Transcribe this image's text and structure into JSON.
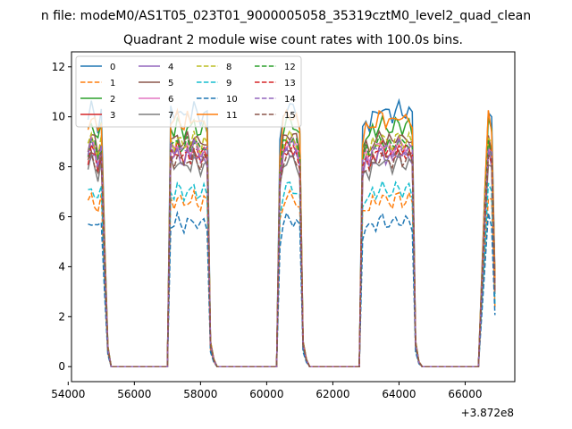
{
  "figure": {
    "suptitle": "n file: modeM0/AS1T05_023T01_9000005058_35319cztM0_level2_quad_clean"
  },
  "chart_data": {
    "type": "line",
    "title": "Quadrant 2 module wise count rates with 100.0s bins.",
    "xlabel": "",
    "ylabel": "",
    "x_offset_label": "+3.872e8",
    "xlim": [
      54100,
      67500
    ],
    "ylim": [
      -0.6,
      12.6
    ],
    "xticks": [
      54000,
      56000,
      58000,
      60000,
      62000,
      64000,
      66000
    ],
    "yticks": [
      0,
      2,
      4,
      6,
      8,
      10,
      12
    ],
    "grid": false,
    "legend": {
      "position": "top-left",
      "columns": 4
    },
    "segments": [
      {
        "x": [
          54600,
          54700,
          54800,
          54900,
          55000,
          55100,
          55200,
          55300
        ],
        "shape": [
          0.95,
          1.0,
          0.97,
          0.92,
          0.98,
          0.5,
          0.08,
          0.0
        ]
      },
      {
        "x": [
          57000,
          57100,
          57200,
          57300,
          57400,
          57500,
          57600,
          57700,
          57800,
          57900,
          58000,
          58100,
          58200,
          58300,
          58400,
          58500
        ],
        "shape": [
          0.0,
          0.98,
          0.96,
          1.0,
          0.97,
          0.95,
          0.99,
          0.96,
          1.0,
          0.97,
          0.95,
          0.98,
          0.96,
          0.1,
          0.03,
          0.0
        ]
      },
      {
        "x": [
          60300,
          60400,
          60500,
          60600,
          60700,
          60800,
          60900,
          61000,
          61100,
          61200,
          61300
        ],
        "shape": [
          0.0,
          0.85,
          0.97,
          1.0,
          1.0,
          0.99,
          0.98,
          0.93,
          0.1,
          0.03,
          0.0
        ]
      },
      {
        "x": [
          62800,
          62900,
          63000,
          63100,
          63200,
          63300,
          63400,
          63500,
          63600,
          63700,
          63800,
          63900,
          64000,
          64100,
          64200,
          64300,
          64400,
          64500,
          64600,
          64700
        ],
        "shape": [
          0.0,
          0.9,
          0.95,
          0.93,
          0.97,
          0.96,
          0.99,
          1.0,
          0.97,
          0.98,
          0.96,
          0.99,
          1.0,
          0.97,
          0.98,
          0.99,
          0.96,
          0.1,
          0.02,
          0.0
        ]
      },
      {
        "x": [
          66400,
          66500,
          66600,
          66700,
          66800,
          66900
        ],
        "shape": [
          0.0,
          0.35,
          0.7,
          1.0,
          0.95,
          0.35
        ]
      }
    ],
    "series": [
      {
        "name": "0",
        "level": 10.4,
        "color": "#1f77b4",
        "dash": "solid"
      },
      {
        "name": "1",
        "level": 6.8,
        "color": "#ff7f0e",
        "dash": "dashed"
      },
      {
        "name": "2",
        "level": 9.8,
        "color": "#2ca02c",
        "dash": "solid"
      },
      {
        "name": "3",
        "level": 8.8,
        "color": "#d62728",
        "dash": "solid"
      },
      {
        "name": "4",
        "level": 8.6,
        "color": "#9467bd",
        "dash": "solid"
      },
      {
        "name": "5",
        "level": 9.3,
        "color": "#8c564b",
        "dash": "solid"
      },
      {
        "name": "6",
        "level": 9.0,
        "color": "#e377c2",
        "dash": "solid"
      },
      {
        "name": "7",
        "level": 8.3,
        "color": "#7f7f7f",
        "dash": "solid"
      },
      {
        "name": "8",
        "level": 9.2,
        "color": "#bcbd22",
        "dash": "dashed"
      },
      {
        "name": "9",
        "level": 7.2,
        "color": "#17becf",
        "dash": "dashed"
      },
      {
        "name": "10",
        "level": 5.9,
        "color": "#1f77b4",
        "dash": "dashed"
      },
      {
        "name": "11",
        "level": 10.1,
        "color": "#ff7f0e",
        "dash": "solid"
      },
      {
        "name": "12",
        "level": 9.1,
        "color": "#2ca02c",
        "dash": "dashed"
      },
      {
        "name": "13",
        "level": 8.7,
        "color": "#d62728",
        "dash": "dashed"
      },
      {
        "name": "14",
        "level": 8.9,
        "color": "#9467bd",
        "dash": "dashed"
      },
      {
        "name": "15",
        "level": 8.5,
        "color": "#8c564b",
        "dash": "dashed"
      }
    ]
  }
}
